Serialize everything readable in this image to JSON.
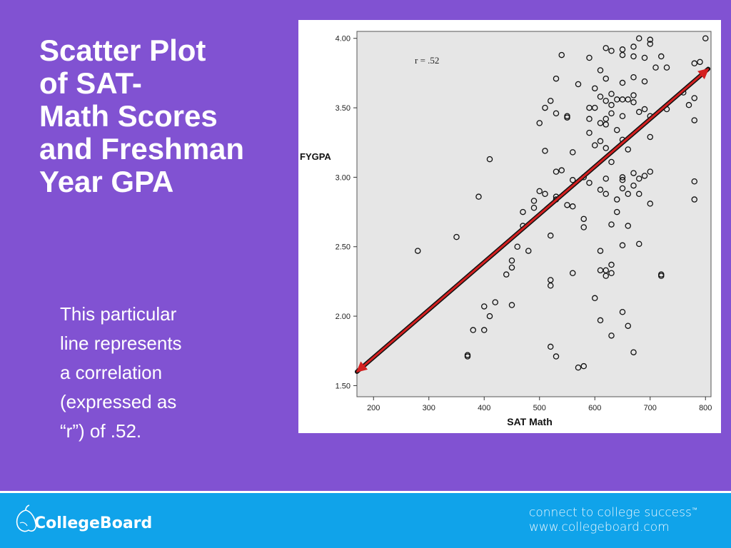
{
  "slide": {
    "title": "Scatter Plot\nof SAT-\nMath Scores\nand Freshman\nYear GPA",
    "caption": "This particular\nline represents\na correlation\n(expressed as\n“r”) of .52."
  },
  "footer": {
    "brand": "CollegeBoard",
    "tagline": "connect to college success",
    "trademark": "™",
    "url": "www.collegeboard.com"
  },
  "colors": {
    "background": "#8152d2",
    "footer": "#10a3ea",
    "plot_area": "#e6e6e6",
    "regression_line": "#d42020"
  },
  "chart_data": {
    "type": "scatter",
    "xlabel": "SAT Math",
    "ylabel": "FYGPA",
    "annotation": "r = .52",
    "xlim": [
      170,
      810
    ],
    "ylim": [
      1.42,
      4.05
    ],
    "x_ticks": [
      200,
      300,
      400,
      500,
      600,
      700,
      800
    ],
    "y_ticks": [
      1.5,
      2.0,
      2.5,
      3.0,
      3.5,
      4.0
    ],
    "grid": false,
    "regression_line": {
      "x": [
        170,
        805
      ],
      "y": [
        1.6,
        3.78
      ],
      "arrowheads": "both"
    },
    "series": [
      {
        "points": [
          [
            280,
            2.47
          ],
          [
            350,
            2.57
          ],
          [
            370,
            1.71
          ],
          [
            370,
            1.72
          ],
          [
            380,
            1.9
          ],
          [
            390,
            2.86
          ],
          [
            400,
            2.07
          ],
          [
            400,
            1.9
          ],
          [
            410,
            2.0
          ],
          [
            410,
            3.13
          ],
          [
            420,
            2.1
          ],
          [
            440,
            2.3
          ],
          [
            450,
            2.35
          ],
          [
            450,
            2.4
          ],
          [
            450,
            2.08
          ],
          [
            460,
            2.5
          ],
          [
            470,
            2.75
          ],
          [
            470,
            2.65
          ],
          [
            480,
            2.47
          ],
          [
            490,
            2.78
          ],
          [
            490,
            2.83
          ],
          [
            500,
            2.9
          ],
          [
            500,
            3.39
          ],
          [
            510,
            3.5
          ],
          [
            510,
            3.19
          ],
          [
            510,
            2.88
          ],
          [
            520,
            3.55
          ],
          [
            520,
            2.58
          ],
          [
            520,
            2.26
          ],
          [
            520,
            2.22
          ],
          [
            520,
            1.78
          ],
          [
            530,
            1.71
          ],
          [
            530,
            2.86
          ],
          [
            530,
            2.84
          ],
          [
            530,
            3.04
          ],
          [
            530,
            3.46
          ],
          [
            530,
            3.71
          ],
          [
            540,
            3.88
          ],
          [
            540,
            3.05
          ],
          [
            550,
            3.44
          ],
          [
            550,
            3.43
          ],
          [
            550,
            2.8
          ],
          [
            560,
            3.18
          ],
          [
            560,
            2.98
          ],
          [
            560,
            2.79
          ],
          [
            560,
            2.31
          ],
          [
            570,
            3.67
          ],
          [
            570,
            1.63
          ],
          [
            580,
            1.64
          ],
          [
            580,
            2.7
          ],
          [
            580,
            2.64
          ],
          [
            580,
            3.0
          ],
          [
            590,
            3.86
          ],
          [
            590,
            3.5
          ],
          [
            590,
            3.32
          ],
          [
            590,
            3.42
          ],
          [
            590,
            2.96
          ],
          [
            600,
            3.64
          ],
          [
            600,
            3.5
          ],
          [
            600,
            3.23
          ],
          [
            600,
            2.13
          ],
          [
            610,
            3.77
          ],
          [
            610,
            3.58
          ],
          [
            610,
            3.39
          ],
          [
            610,
            3.26
          ],
          [
            610,
            2.91
          ],
          [
            610,
            2.47
          ],
          [
            610,
            2.33
          ],
          [
            610,
            1.97
          ],
          [
            620,
            3.93
          ],
          [
            620,
            3.71
          ],
          [
            620,
            3.55
          ],
          [
            620,
            3.42
          ],
          [
            620,
            3.38
          ],
          [
            620,
            3.21
          ],
          [
            620,
            2.99
          ],
          [
            620,
            2.88
          ],
          [
            620,
            2.33
          ],
          [
            620,
            2.29
          ],
          [
            630,
            3.91
          ],
          [
            630,
            3.6
          ],
          [
            630,
            3.52
          ],
          [
            630,
            3.46
          ],
          [
            630,
            3.11
          ],
          [
            630,
            2.66
          ],
          [
            630,
            2.37
          ],
          [
            630,
            2.31
          ],
          [
            630,
            1.86
          ],
          [
            640,
            3.56
          ],
          [
            640,
            3.34
          ],
          [
            640,
            2.75
          ],
          [
            640,
            2.84
          ],
          [
            650,
            3.92
          ],
          [
            650,
            3.88
          ],
          [
            650,
            3.68
          ],
          [
            650,
            3.56
          ],
          [
            650,
            3.44
          ],
          [
            650,
            3.27
          ],
          [
            650,
            3.0
          ],
          [
            650,
            2.98
          ],
          [
            650,
            2.92
          ],
          [
            650,
            2.51
          ],
          [
            650,
            2.03
          ],
          [
            660,
            3.56
          ],
          [
            660,
            3.2
          ],
          [
            660,
            2.88
          ],
          [
            660,
            2.65
          ],
          [
            660,
            1.93
          ],
          [
            670,
            3.94
          ],
          [
            670,
            3.87
          ],
          [
            670,
            3.72
          ],
          [
            670,
            3.59
          ],
          [
            670,
            3.54
          ],
          [
            670,
            3.03
          ],
          [
            670,
            2.94
          ],
          [
            670,
            1.74
          ],
          [
            680,
            4.0
          ],
          [
            680,
            3.47
          ],
          [
            680,
            2.99
          ],
          [
            680,
            2.52
          ],
          [
            680,
            2.88
          ],
          [
            690,
            3.86
          ],
          [
            690,
            3.69
          ],
          [
            690,
            3.49
          ],
          [
            690,
            3.01
          ],
          [
            700,
            3.99
          ],
          [
            700,
            3.96
          ],
          [
            700,
            3.44
          ],
          [
            700,
            3.29
          ],
          [
            700,
            3.04
          ],
          [
            700,
            2.81
          ],
          [
            710,
            3.79
          ],
          [
            720,
            3.87
          ],
          [
            720,
            2.3
          ],
          [
            720,
            2.29
          ],
          [
            730,
            3.79
          ],
          [
            730,
            3.49
          ],
          [
            760,
            3.61
          ],
          [
            770,
            3.52
          ],
          [
            780,
            3.82
          ],
          [
            780,
            3.57
          ],
          [
            780,
            3.41
          ],
          [
            780,
            2.97
          ],
          [
            780,
            2.84
          ],
          [
            790,
            3.83
          ],
          [
            800,
            4.0
          ]
        ]
      }
    ]
  }
}
